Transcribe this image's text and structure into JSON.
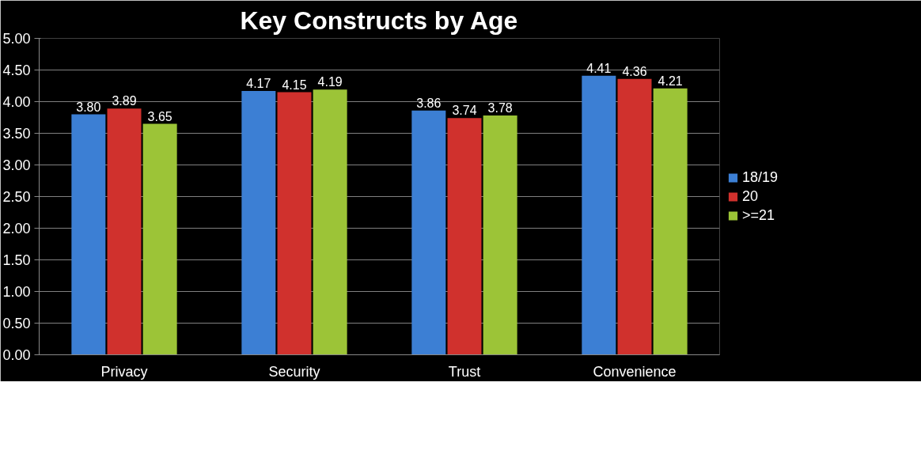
{
  "chart_data": {
    "type": "bar",
    "title": "Key Constructs by Age",
    "categories": [
      "Privacy",
      "Security",
      "Trust",
      "Convenience"
    ],
    "series": [
      {
        "name": "18/19",
        "color": "#3c7fd4",
        "values": [
          3.8,
          4.17,
          3.86,
          4.41
        ],
        "value_labels": [
          "3.80",
          "4.17",
          "3.86",
          "4.41"
        ]
      },
      {
        "name": "20",
        "color": "#d0312d",
        "values": [
          3.89,
          4.15,
          3.74,
          4.36
        ],
        "value_labels": [
          "3.89",
          "4.15",
          "3.74",
          "4.36"
        ]
      },
      {
        "name": ">=21",
        "color": "#9cc437",
        "values": [
          3.65,
          4.19,
          3.78,
          4.21
        ],
        "value_labels": [
          "3.65",
          "4.19",
          "3.78",
          "4.21"
        ]
      }
    ],
    "ylim": [
      0,
      5
    ],
    "yticks": [
      {
        "value": 0,
        "label": "0.00"
      },
      {
        "value": 0.5,
        "label": "0.50"
      },
      {
        "value": 1,
        "label": "1.00"
      },
      {
        "value": 1.5,
        "label": "1.50"
      },
      {
        "value": 2,
        "label": "2.00"
      },
      {
        "value": 2.5,
        "label": "2.50"
      },
      {
        "value": 3,
        "label": "3.00"
      },
      {
        "value": 3.5,
        "label": "3.50"
      },
      {
        "value": 4,
        "label": "4.00"
      },
      {
        "value": 4.5,
        "label": "4.50"
      },
      {
        "value": 5,
        "label": "5.00"
      }
    ],
    "grid": "y",
    "legend": "right"
  }
}
